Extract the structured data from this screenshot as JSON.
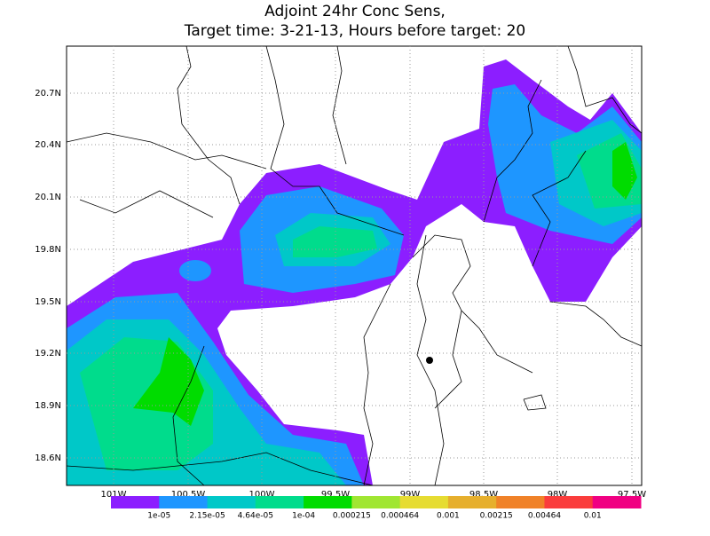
{
  "title": [
    "Adjoint 24hr Conc Sens,",
    "Target time: 3-21-13, Hours before target: 20"
  ],
  "lat_labels": [
    "20.7N",
    "20.4N",
    "20.1N",
    "19.8N",
    "19.5N",
    "19.2N",
    "18.9N",
    "18.6N"
  ],
  "lon_labels": [
    "101W",
    "100.5W",
    "100W",
    "99.5W",
    "99W",
    "98.5W",
    "98W",
    "97.5W"
  ],
  "colorbar": {
    "colors": [
      "#8c1eff",
      "#1e96ff",
      "#00c8c8",
      "#00dc8c",
      "#00dc00",
      "#a0e632",
      "#e6dc32",
      "#e6af2d",
      "#f08228",
      "#fa3c3c",
      "#f00082"
    ],
    "labels": [
      "1e-05",
      "2.15e-05",
      "4.64e-05",
      "1e-04",
      "0.000215",
      "0.000464",
      "0.001",
      "0.00215",
      "0.00464",
      "0.01"
    ]
  }
}
